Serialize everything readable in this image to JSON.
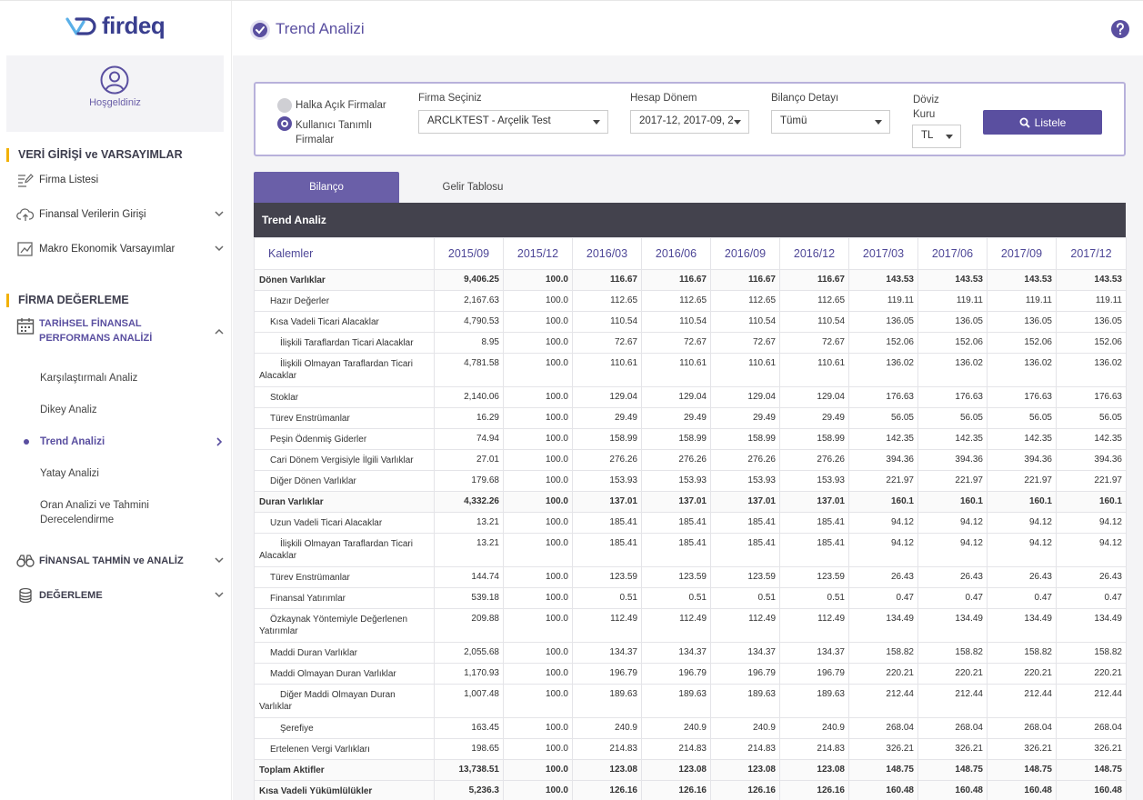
{
  "brand": {
    "logo_text": "firdeq",
    "accent": "#5a4fa0",
    "section_marker": "#f2b100"
  },
  "welcome": {
    "text": "Hoşgeldiniz"
  },
  "sidebar": {
    "section1_title": "VERİ GİRİŞİ ve VARSAYIMLAR",
    "items1": [
      {
        "label": "Firma Listesi",
        "icon": "list-edit-icon"
      },
      {
        "label": "Finansal Verilerin Girişi",
        "icon": "cloud-upload-icon"
      },
      {
        "label": "Makro Ekonomik Varsayımlar",
        "icon": "chart-box-icon"
      }
    ],
    "section2_title": "FİRMA DEĞERLEME",
    "group_label_line1": "TARİHSEL FİNANSAL",
    "group_label_line2": "PERFORMANS ANALİZİ",
    "sub_items": [
      {
        "label": "Karşılaştırmalı Analiz"
      },
      {
        "label": "Dikey Analiz"
      },
      {
        "label": "Trend Analizi"
      },
      {
        "label": "Yatay Analizi"
      },
      {
        "label": "Oran Analizi ve Tahmini",
        "label2": "Derecelendirme"
      }
    ],
    "items2": [
      {
        "label": "FİNANSAL TAHMİN ve ANALİZ",
        "icon": "binoculars-icon"
      },
      {
        "label": "DEĞERLEME",
        "icon": "coin-stack-icon"
      }
    ]
  },
  "header": {
    "title": "Trend Analizi"
  },
  "filters": {
    "radio1": "Halka Açık Firmalar",
    "radio2_line1": "Kullanıcı Tanımlı",
    "radio2_line2": "Firmalar",
    "firma_label": "Firma Seçiniz",
    "firma_value": "ARCLKTEST - Arçelik Test",
    "donem_label": "Hesap Dönem",
    "donem_value": "2017-12, 2017-09, 2",
    "detay_label": "Bilanço Detayı",
    "detay_value": "Tümü",
    "doviz_label_line1": "Döviz",
    "doviz_label_line2": "Kuru",
    "doviz_value": "TL",
    "listele": "Listele"
  },
  "tabs": {
    "active": "Bilanço",
    "inactive": "Gelir Tablosu"
  },
  "table": {
    "bar_title": "Trend Analiz",
    "first_col": "Kalemler",
    "columns": [
      "2015/09",
      "2015/12",
      "2016/03",
      "2016/06",
      "2016/09",
      "2016/12",
      "2017/03",
      "2017/06",
      "2017/09",
      "2017/12"
    ],
    "rows": [
      {
        "name": "Dönen Varlıklar",
        "style": "bold",
        "values": [
          "9,406.25",
          "100.0",
          "116.67",
          "116.67",
          "116.67",
          "116.67",
          "143.53",
          "143.53",
          "143.53",
          "143.53"
        ]
      },
      {
        "name": "Hazır Değerler",
        "style": "l1",
        "values": [
          "2,167.63",
          "100.0",
          "112.65",
          "112.65",
          "112.65",
          "112.65",
          "119.11",
          "119.11",
          "119.11",
          "119.11"
        ]
      },
      {
        "name": "Kısa Vadeli Ticari Alacaklar",
        "style": "l1",
        "values": [
          "4,790.53",
          "100.0",
          "110.54",
          "110.54",
          "110.54",
          "110.54",
          "136.05",
          "136.05",
          "136.05",
          "136.05"
        ]
      },
      {
        "name": "İlişkili Taraflardan Ticari Alacaklar",
        "style": "l2",
        "values": [
          "8.95",
          "100.0",
          "72.67",
          "72.67",
          "72.67",
          "72.67",
          "152.06",
          "152.06",
          "152.06",
          "152.06"
        ]
      },
      {
        "name": "İlişkili Olmayan Taraflardan Ticari Alacaklar",
        "style": "l2w",
        "values": [
          "4,781.58",
          "100.0",
          "110.61",
          "110.61",
          "110.61",
          "110.61",
          "136.02",
          "136.02",
          "136.02",
          "136.02"
        ]
      },
      {
        "name": "Stoklar",
        "style": "l1",
        "values": [
          "2,140.06",
          "100.0",
          "129.04",
          "129.04",
          "129.04",
          "129.04",
          "176.63",
          "176.63",
          "176.63",
          "176.63"
        ]
      },
      {
        "name": "Türev Enstrümanlar",
        "style": "l1",
        "values": [
          "16.29",
          "100.0",
          "29.49",
          "29.49",
          "29.49",
          "29.49",
          "56.05",
          "56.05",
          "56.05",
          "56.05"
        ]
      },
      {
        "name": "Peşin Ödenmiş Giderler",
        "style": "l1",
        "values": [
          "74.94",
          "100.0",
          "158.99",
          "158.99",
          "158.99",
          "158.99",
          "142.35",
          "142.35",
          "142.35",
          "142.35"
        ]
      },
      {
        "name": "Cari Dönem Vergisiyle İlgili Varlıklar",
        "style": "l1",
        "values": [
          "27.01",
          "100.0",
          "276.26",
          "276.26",
          "276.26",
          "276.26",
          "394.36",
          "394.36",
          "394.36",
          "394.36"
        ]
      },
      {
        "name": "Diğer Dönen Varlıklar",
        "style": "l1",
        "values": [
          "179.68",
          "100.0",
          "153.93",
          "153.93",
          "153.93",
          "153.93",
          "221.97",
          "221.97",
          "221.97",
          "221.97"
        ]
      },
      {
        "name": "Duran Varlıklar",
        "style": "bold",
        "values": [
          "4,332.26",
          "100.0",
          "137.01",
          "137.01",
          "137.01",
          "137.01",
          "160.1",
          "160.1",
          "160.1",
          "160.1"
        ]
      },
      {
        "name": "Uzun Vadeli Ticari Alacaklar",
        "style": "l1",
        "values": [
          "13.21",
          "100.0",
          "185.41",
          "185.41",
          "185.41",
          "185.41",
          "94.12",
          "94.12",
          "94.12",
          "94.12"
        ]
      },
      {
        "name": "İlişkili Olmayan Taraflardan Ticari Alacaklar",
        "style": "l2w",
        "values": [
          "13.21",
          "100.0",
          "185.41",
          "185.41",
          "185.41",
          "185.41",
          "94.12",
          "94.12",
          "94.12",
          "94.12"
        ]
      },
      {
        "name": "Türev Enstrümanlar",
        "style": "l1",
        "values": [
          "144.74",
          "100.0",
          "123.59",
          "123.59",
          "123.59",
          "123.59",
          "26.43",
          "26.43",
          "26.43",
          "26.43"
        ]
      },
      {
        "name": "Finansal Yatırımlar",
        "style": "l1",
        "values": [
          "539.18",
          "100.0",
          "0.51",
          "0.51",
          "0.51",
          "0.51",
          "0.47",
          "0.47",
          "0.47",
          "0.47"
        ]
      },
      {
        "name": "Özkaynak Yöntemiyle Değerlenen Yatırımlar",
        "style": "l1w",
        "values": [
          "209.88",
          "100.0",
          "112.49",
          "112.49",
          "112.49",
          "112.49",
          "134.49",
          "134.49",
          "134.49",
          "134.49"
        ]
      },
      {
        "name": "Maddi Duran Varlıklar",
        "style": "l1",
        "values": [
          "2,055.68",
          "100.0",
          "134.37",
          "134.37",
          "134.37",
          "134.37",
          "158.82",
          "158.82",
          "158.82",
          "158.82"
        ]
      },
      {
        "name": "Maddi Olmayan Duran Varlıklar",
        "style": "l1",
        "values": [
          "1,170.93",
          "100.0",
          "196.79",
          "196.79",
          "196.79",
          "196.79",
          "220.21",
          "220.21",
          "220.21",
          "220.21"
        ]
      },
      {
        "name": "Diğer Maddi Olmayan Duran Varlıklar",
        "style": "l2w",
        "values": [
          "1,007.48",
          "100.0",
          "189.63",
          "189.63",
          "189.63",
          "189.63",
          "212.44",
          "212.44",
          "212.44",
          "212.44"
        ]
      },
      {
        "name": "Şerefiye",
        "style": "l2",
        "values": [
          "163.45",
          "100.0",
          "240.9",
          "240.9",
          "240.9",
          "240.9",
          "268.04",
          "268.04",
          "268.04",
          "268.04"
        ]
      },
      {
        "name": "Ertelenen Vergi Varlıkları",
        "style": "l1",
        "values": [
          "198.65",
          "100.0",
          "214.83",
          "214.83",
          "214.83",
          "214.83",
          "326.21",
          "326.21",
          "326.21",
          "326.21"
        ]
      },
      {
        "name": "Toplam Aktifler",
        "style": "bold",
        "values": [
          "13,738.51",
          "100.0",
          "123.08",
          "123.08",
          "123.08",
          "123.08",
          "148.75",
          "148.75",
          "148.75",
          "148.75"
        ]
      },
      {
        "name": "Kısa Vadeli Yükümlülükler",
        "style": "bold",
        "values": [
          "5,236.3",
          "100.0",
          "126.16",
          "126.16",
          "126.16",
          "126.16",
          "160.48",
          "160.48",
          "160.48",
          "160.48"
        ]
      }
    ]
  }
}
